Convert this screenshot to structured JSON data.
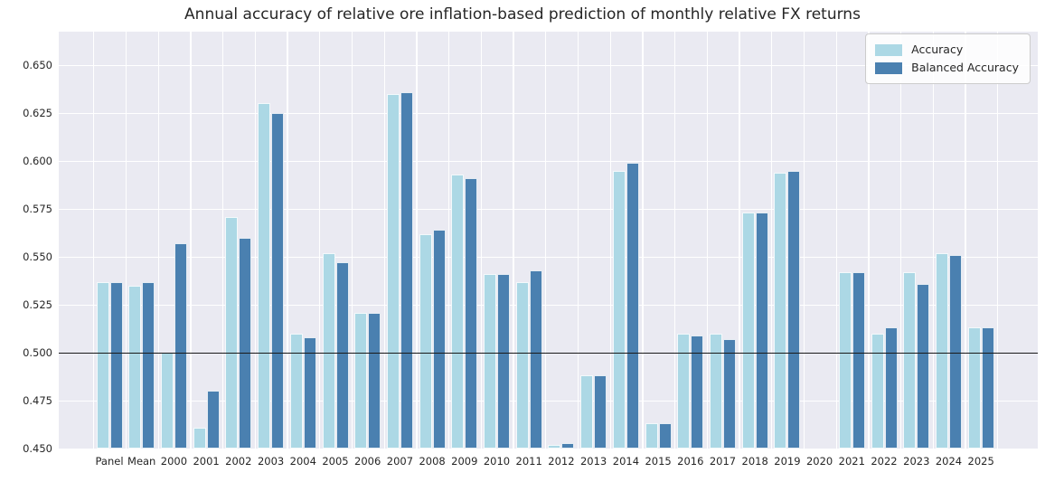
{
  "chart_data": {
    "type": "bar",
    "title": "Annual accuracy of relative ore inflation-based prediction of monthly relative FX returns",
    "xlabel": "",
    "ylabel": "",
    "categories": [
      "Panel",
      "Mean",
      "2000",
      "2001",
      "2002",
      "2003",
      "2004",
      "2005",
      "2006",
      "2007",
      "2008",
      "2009",
      "2010",
      "2011",
      "2012",
      "2013",
      "2014",
      "2015",
      "2016",
      "2017",
      "2018",
      "2019",
      "2020",
      "2021",
      "2022",
      "2023",
      "2024",
      "2025"
    ],
    "series": [
      {
        "name": "Accuracy",
        "color": "#acd8e5",
        "values": [
          0.537,
          0.535,
          0.5,
          0.461,
          0.571,
          0.63,
          0.51,
          0.552,
          0.521,
          0.635,
          0.562,
          0.593,
          0.541,
          0.537,
          0.452,
          0.488,
          0.595,
          0.463,
          0.51,
          0.51,
          0.573,
          0.594,
          null,
          0.542,
          0.51,
          0.542,
          0.552,
          0.513
        ]
      },
      {
        "name": "Balanced Accuracy",
        "color": "#4a80b0",
        "values": [
          0.537,
          0.537,
          0.557,
          0.48,
          0.56,
          0.625,
          0.508,
          0.547,
          0.521,
          0.636,
          0.564,
          0.591,
          0.541,
          0.543,
          0.453,
          0.488,
          0.599,
          0.463,
          0.509,
          0.507,
          0.573,
          0.595,
          null,
          0.542,
          0.513,
          0.536,
          0.551,
          0.513
        ]
      }
    ],
    "yticks": [
      0.45,
      0.475,
      0.5,
      0.525,
      0.55,
      0.575,
      0.6,
      0.625,
      0.65
    ],
    "ylim": [
      0.45,
      0.6675
    ],
    "reference_line": 0.5,
    "grid": "on",
    "legend_position": "upper right",
    "plot_background": "#eaeaf2",
    "grid_color": "#ffffff",
    "reference_line_color": "#1a1a1a",
    "text_color": "#262626"
  }
}
